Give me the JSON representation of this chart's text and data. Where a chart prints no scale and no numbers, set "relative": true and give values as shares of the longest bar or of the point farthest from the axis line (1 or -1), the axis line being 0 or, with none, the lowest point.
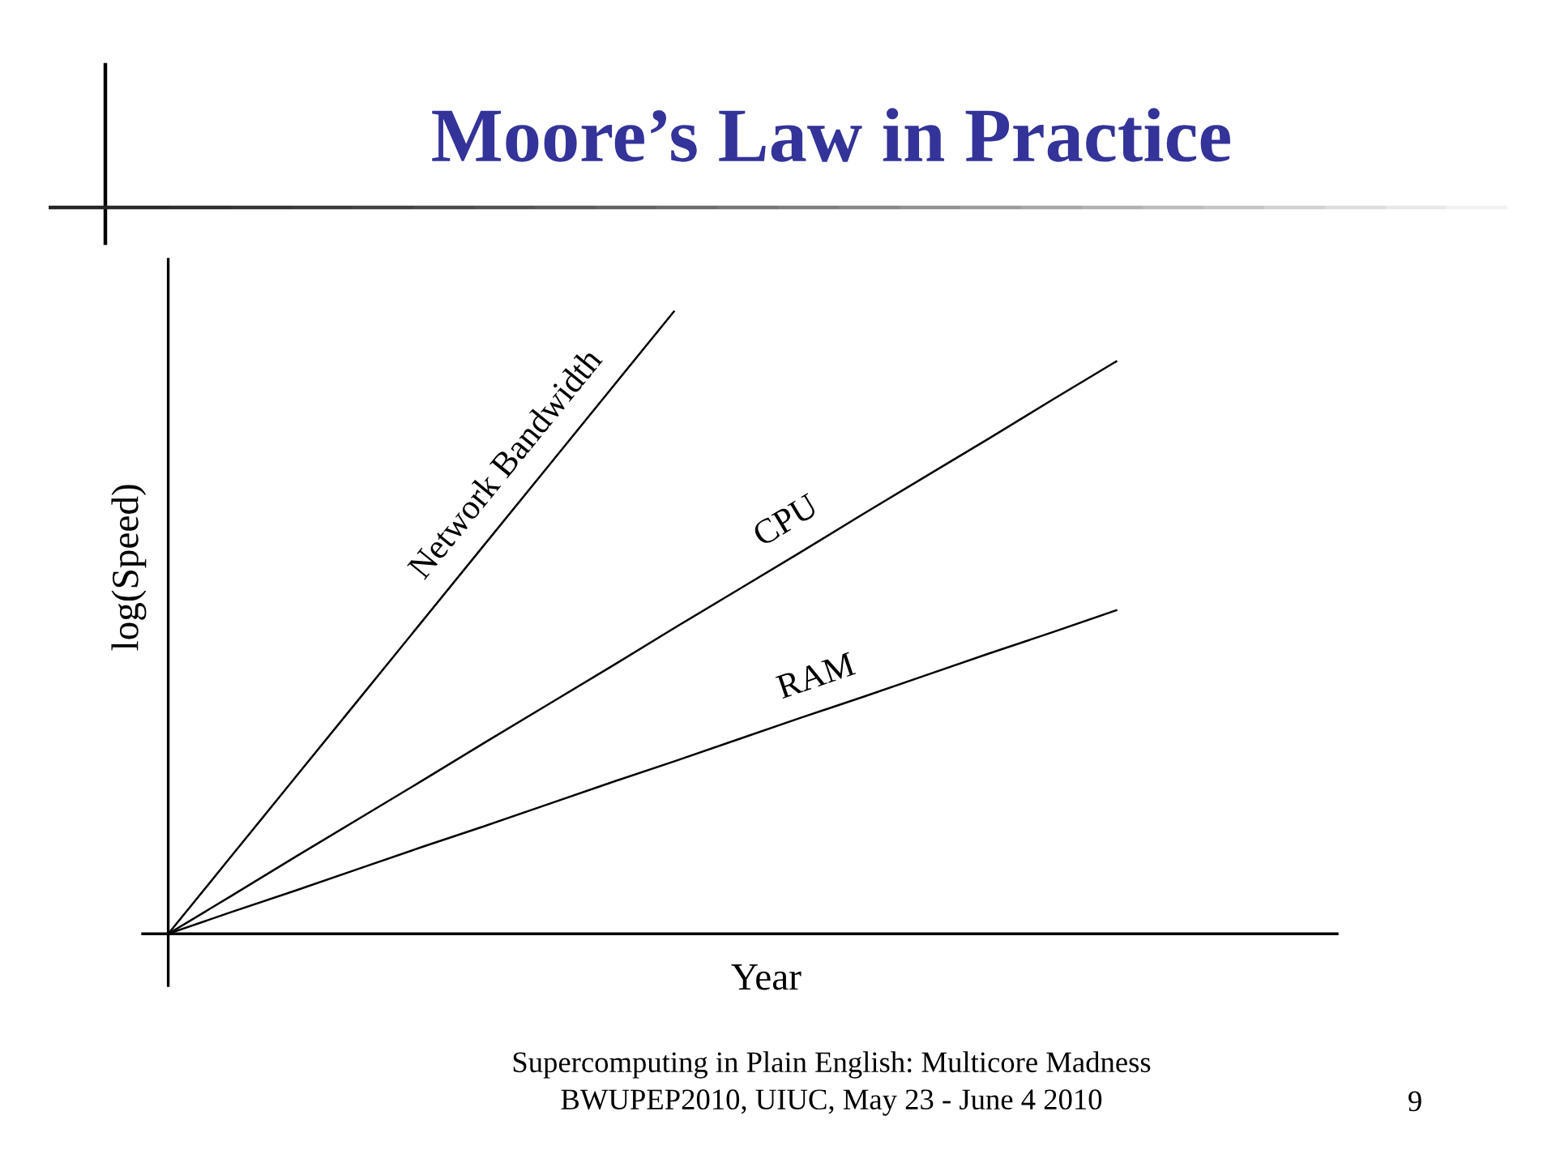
{
  "chart_data": {
    "type": "line",
    "title": "Moore’s Law in Practice",
    "xlabel": "Year",
    "ylabel": "log(Speed)",
    "relative": true,
    "categories": [
      null,
      null,
      null,
      null,
      null,
      null,
      null,
      null,
      null,
      null,
      null,
      null,
      null,
      null,
      null,
      null
    ],
    "series": [
      {
        "name": "Network Bandwidth",
        "color": "#000000",
        "values": [
          0,
          0.125,
          0.25,
          0.375,
          0.5,
          0.625,
          0.75,
          0.875,
          1,
          null,
          null,
          null,
          null,
          null,
          null,
          null
        ]
      },
      {
        "name": "CPU",
        "color": "#000000",
        "values": [
          0,
          0.061,
          0.123,
          0.184,
          0.245,
          0.307,
          0.368,
          0.429,
          0.491,
          0.552,
          0.613,
          0.675,
          0.736,
          0.797,
          0.859,
          0.92
        ]
      },
      {
        "name": "RAM",
        "color": "#000000",
        "values": [
          0,
          0.035,
          0.069,
          0.104,
          0.139,
          0.173,
          0.208,
          0.243,
          0.277,
          0.312,
          0.347,
          0.381,
          0.416,
          0.451,
          0.485,
          0.52
        ]
      }
    ],
    "annotations": [
      "Supercomputing in Plain English: Multicore Madness",
      "BWUPEP2010, UIUC, May 23 - June 4 2010",
      "9"
    ]
  }
}
